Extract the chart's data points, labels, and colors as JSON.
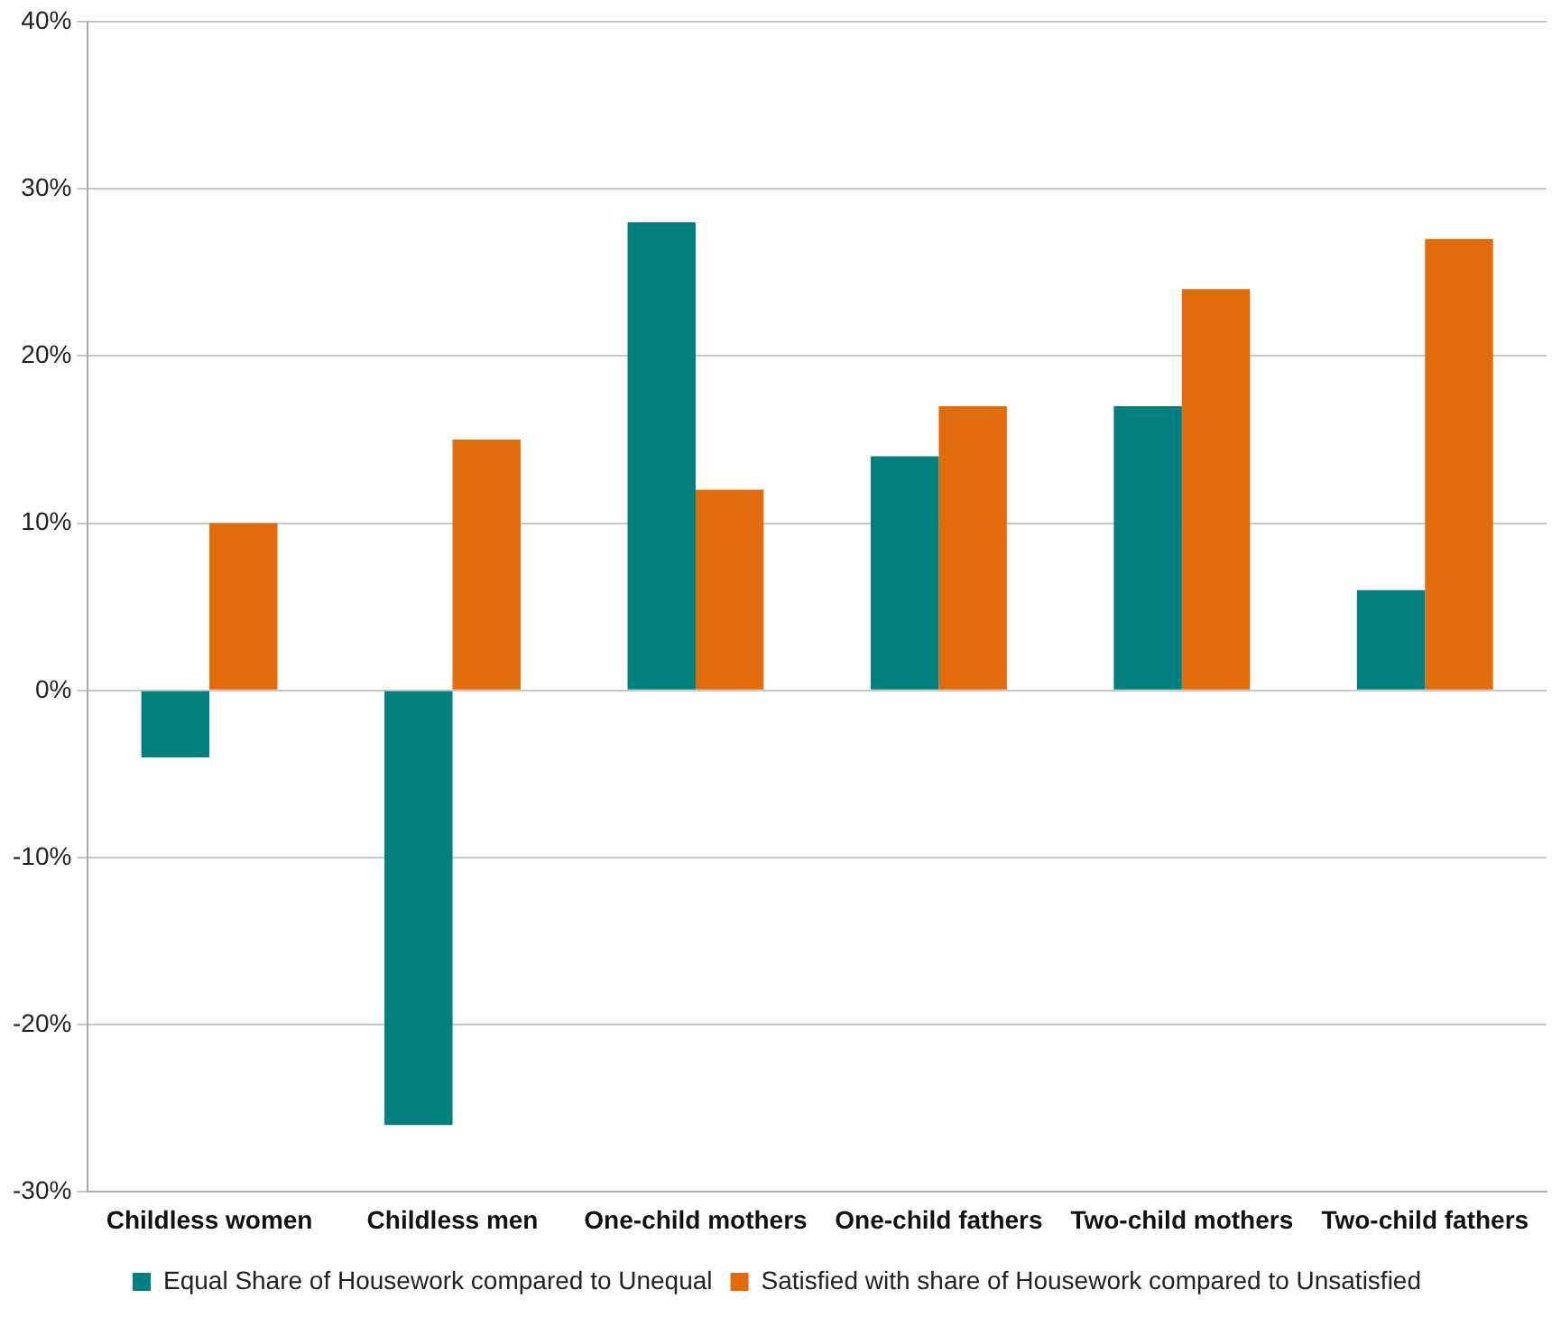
{
  "chart_data": {
    "type": "bar",
    "categories": [
      "Childless women",
      "Childless men",
      "One-child mothers",
      "One-child fathers",
      "Two-child mothers",
      "Two-child fathers"
    ],
    "series": [
      {
        "name": "Equal Share of Housework compared to Unequal",
        "color": "#007f7f",
        "values": [
          -4,
          -26,
          28,
          14,
          17,
          6
        ]
      },
      {
        "name": "Satisfied with share of Housework compared to Unsatisfied",
        "color": "#e36c0a",
        "values": [
          10,
          15,
          12,
          17,
          24,
          27
        ]
      }
    ],
    "ylim": [
      -30,
      40
    ],
    "yticks": [
      {
        "value": -30,
        "label": "-30%"
      },
      {
        "value": -20,
        "label": "-20%"
      },
      {
        "value": -10,
        "label": "-10%"
      },
      {
        "value": 0,
        "label": "0%"
      },
      {
        "value": 10,
        "label": "10%"
      },
      {
        "value": 20,
        "label": "20%"
      },
      {
        "value": 30,
        "label": "30%"
      },
      {
        "value": 40,
        "label": "40%"
      }
    ],
    "grid": "y",
    "legend": "bottom"
  }
}
